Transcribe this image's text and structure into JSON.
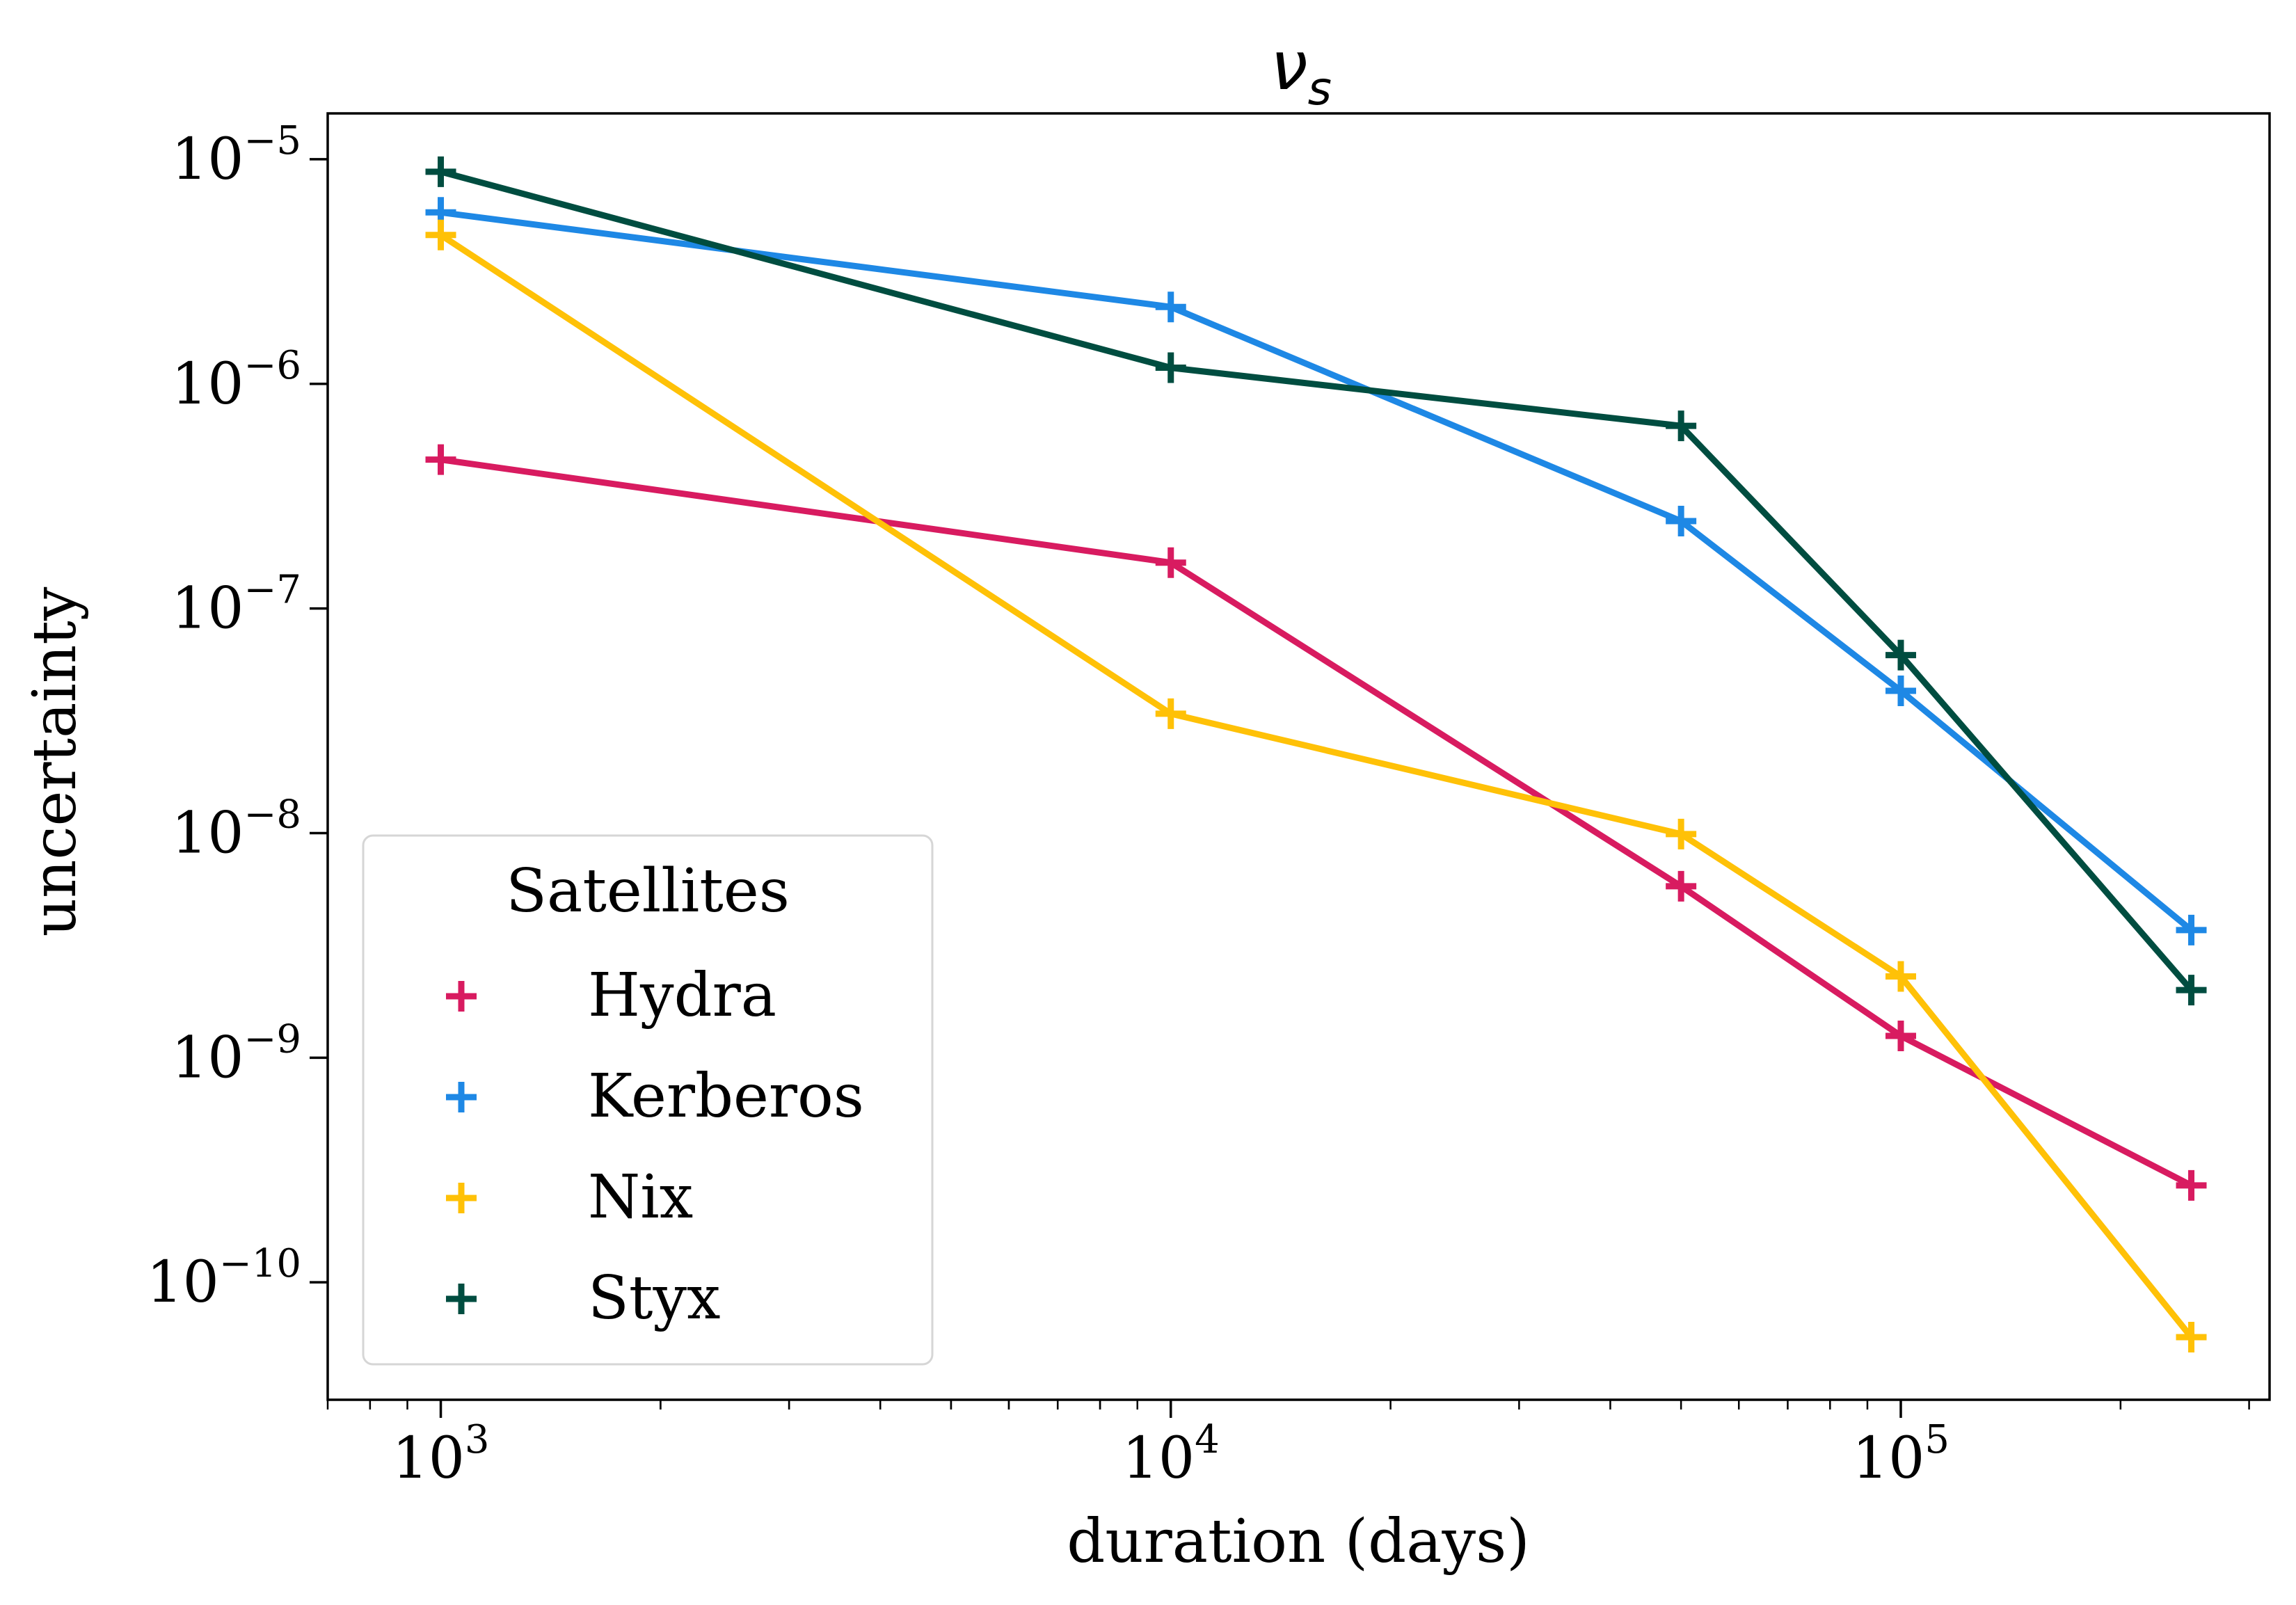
{
  "chart_data": {
    "type": "line",
    "title": "ν",
    "title_subscript": "s",
    "xlabel": "duration (days)",
    "ylabel": "uncertainty",
    "xscale": "log",
    "yscale": "log",
    "xlim": [
      700,
      320000
    ],
    "ylim": [
      3e-11,
      1.6e-05
    ],
    "x": [
      1000,
      10000,
      50000,
      100000,
      250000
    ],
    "x_ticks": [
      {
        "value": 1000,
        "base": "10",
        "exp": "3"
      },
      {
        "value": 10000,
        "base": "10",
        "exp": "4"
      },
      {
        "value": 100000,
        "base": "10",
        "exp": "5"
      }
    ],
    "y_ticks": [
      {
        "value": 1e-05,
        "base": "10",
        "exp": "−5"
      },
      {
        "value": 1e-06,
        "base": "10",
        "exp": "−6"
      },
      {
        "value": 1e-07,
        "base": "10",
        "exp": "−7"
      },
      {
        "value": 1e-08,
        "base": "10",
        "exp": "−8"
      },
      {
        "value": 1e-09,
        "base": "10",
        "exp": "−9"
      },
      {
        "value": 1e-10,
        "base": "10",
        "exp": "−10"
      }
    ],
    "legend": {
      "title": "Satellites",
      "placement": "lower-left"
    },
    "series": [
      {
        "name": "Hydra",
        "color": "#D81B60",
        "values": [
          4.6e-07,
          1.6e-07,
          5.8e-09,
          1.25e-09,
          2.7e-10
        ]
      },
      {
        "name": "Kerberos",
        "color": "#1E88E5",
        "values": [
          5.8e-06,
          2.2e-06,
          2.45e-07,
          4.3e-08,
          3.7e-09
        ]
      },
      {
        "name": "Nix",
        "color": "#FFC107",
        "values": [
          4.6e-06,
          3.4e-08,
          9.9e-09,
          2.3e-09,
          5.7e-11
        ]
      },
      {
        "name": "Styx",
        "color": "#004D40",
        "values": [
          8.8e-06,
          1.18e-06,
          6.5e-07,
          6.2e-08,
          2e-09
        ]
      }
    ]
  }
}
